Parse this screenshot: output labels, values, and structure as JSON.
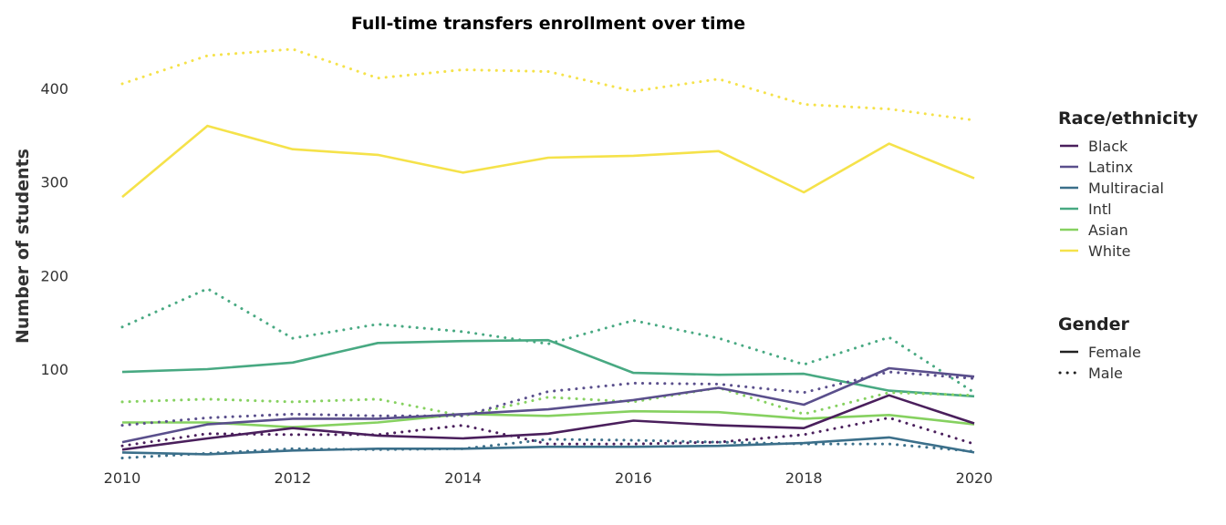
{
  "chart_data": {
    "type": "line",
    "title": "Full-time transfers enrollment over time",
    "xlabel": "",
    "ylabel": "Number of students",
    "xlim": [
      2010,
      2020
    ],
    "ylim": [
      5,
      450
    ],
    "x_ticks": [
      "2010",
      "2012",
      "2014",
      "2016",
      "2018",
      "2020"
    ],
    "y_ticks": [
      "100",
      "200",
      "300",
      "400"
    ],
    "x": [
      2010,
      2011,
      2012,
      2013,
      2014,
      2015,
      2016,
      2017,
      2018,
      2019,
      2020
    ],
    "grid": false,
    "legend_position": "right",
    "legend": {
      "race_title": "Race/ethnicity",
      "race_entries": [
        {
          "label": "Black",
          "color": "#4a1f5c"
        },
        {
          "label": "Latinx",
          "color": "#5a4f8c"
        },
        {
          "label": "Multiracial",
          "color": "#3b6f8a"
        },
        {
          "label": "Intl",
          "color": "#48a982"
        },
        {
          "label": "Asian",
          "color": "#86d160"
        },
        {
          "label": "White",
          "color": "#f5e24a"
        }
      ],
      "gender_title": "Gender",
      "gender_entries": [
        {
          "label": "Female",
          "style": "solid"
        },
        {
          "label": "Male",
          "style": "dotted"
        }
      ]
    },
    "series": [
      {
        "race": "White",
        "gender": "Male",
        "color": "#f5e24a",
        "style": "dotted",
        "values": [
          405,
          435,
          442,
          411,
          420,
          418,
          397,
          410,
          383,
          378,
          366
        ]
      },
      {
        "race": "White",
        "gender": "Female",
        "color": "#f5e24a",
        "style": "solid",
        "values": [
          284,
          360,
          335,
          329,
          310,
          326,
          328,
          333,
          289,
          341,
          304
        ]
      },
      {
        "race": "Intl",
        "gender": "Male",
        "color": "#48a982",
        "style": "dotted",
        "values": [
          145,
          186,
          133,
          148,
          140,
          127,
          152,
          133,
          105,
          134,
          75
        ]
      },
      {
        "race": "Intl",
        "gender": "Female",
        "color": "#48a982",
        "style": "solid",
        "values": [
          97,
          100,
          107,
          128,
          130,
          131,
          96,
          94,
          95,
          77,
          71
        ]
      },
      {
        "race": "Asian",
        "gender": "Male",
        "color": "#86d160",
        "style": "dotted",
        "values": [
          65,
          68,
          65,
          68,
          50,
          70,
          65,
          80,
          52,
          75,
          72
        ]
      },
      {
        "race": "Asian",
        "gender": "Female",
        "color": "#86d160",
        "style": "solid",
        "values": [
          43,
          43,
          38,
          43,
          52,
          50,
          55,
          54,
          47,
          51,
          41
        ]
      },
      {
        "race": "Latinx",
        "gender": "Male",
        "color": "#5a4f8c",
        "style": "dotted",
        "values": [
          40,
          48,
          52,
          50,
          50,
          76,
          85,
          84,
          75,
          97,
          90
        ]
      },
      {
        "race": "Latinx",
        "gender": "Female",
        "color": "#5a4f8c",
        "style": "solid",
        "values": [
          22,
          41,
          47,
          47,
          52,
          57,
          67,
          80,
          62,
          101,
          92
        ]
      },
      {
        "race": "Black",
        "gender": "Male",
        "color": "#4a1f5c",
        "style": "dotted",
        "values": [
          18,
          31,
          30,
          30,
          40,
          20,
          20,
          22,
          30,
          48,
          20
        ]
      },
      {
        "race": "Black",
        "gender": "Female",
        "color": "#4a1f5c",
        "style": "solid",
        "values": [
          14,
          26,
          37,
          29,
          26,
          31,
          45,
          40,
          37,
          72,
          42
        ]
      },
      {
        "race": "Multiracial",
        "gender": "Male",
        "color": "#3b6f8a",
        "style": "dotted",
        "values": [
          5,
          10,
          15,
          14,
          15,
          25,
          24,
          22,
          20,
          20,
          12
        ]
      },
      {
        "race": "Multiracial",
        "gender": "Female",
        "color": "#3b6f8a",
        "style": "solid",
        "values": [
          11,
          9,
          13,
          15,
          15,
          17,
          17,
          18,
          21,
          27,
          11
        ]
      }
    ]
  }
}
